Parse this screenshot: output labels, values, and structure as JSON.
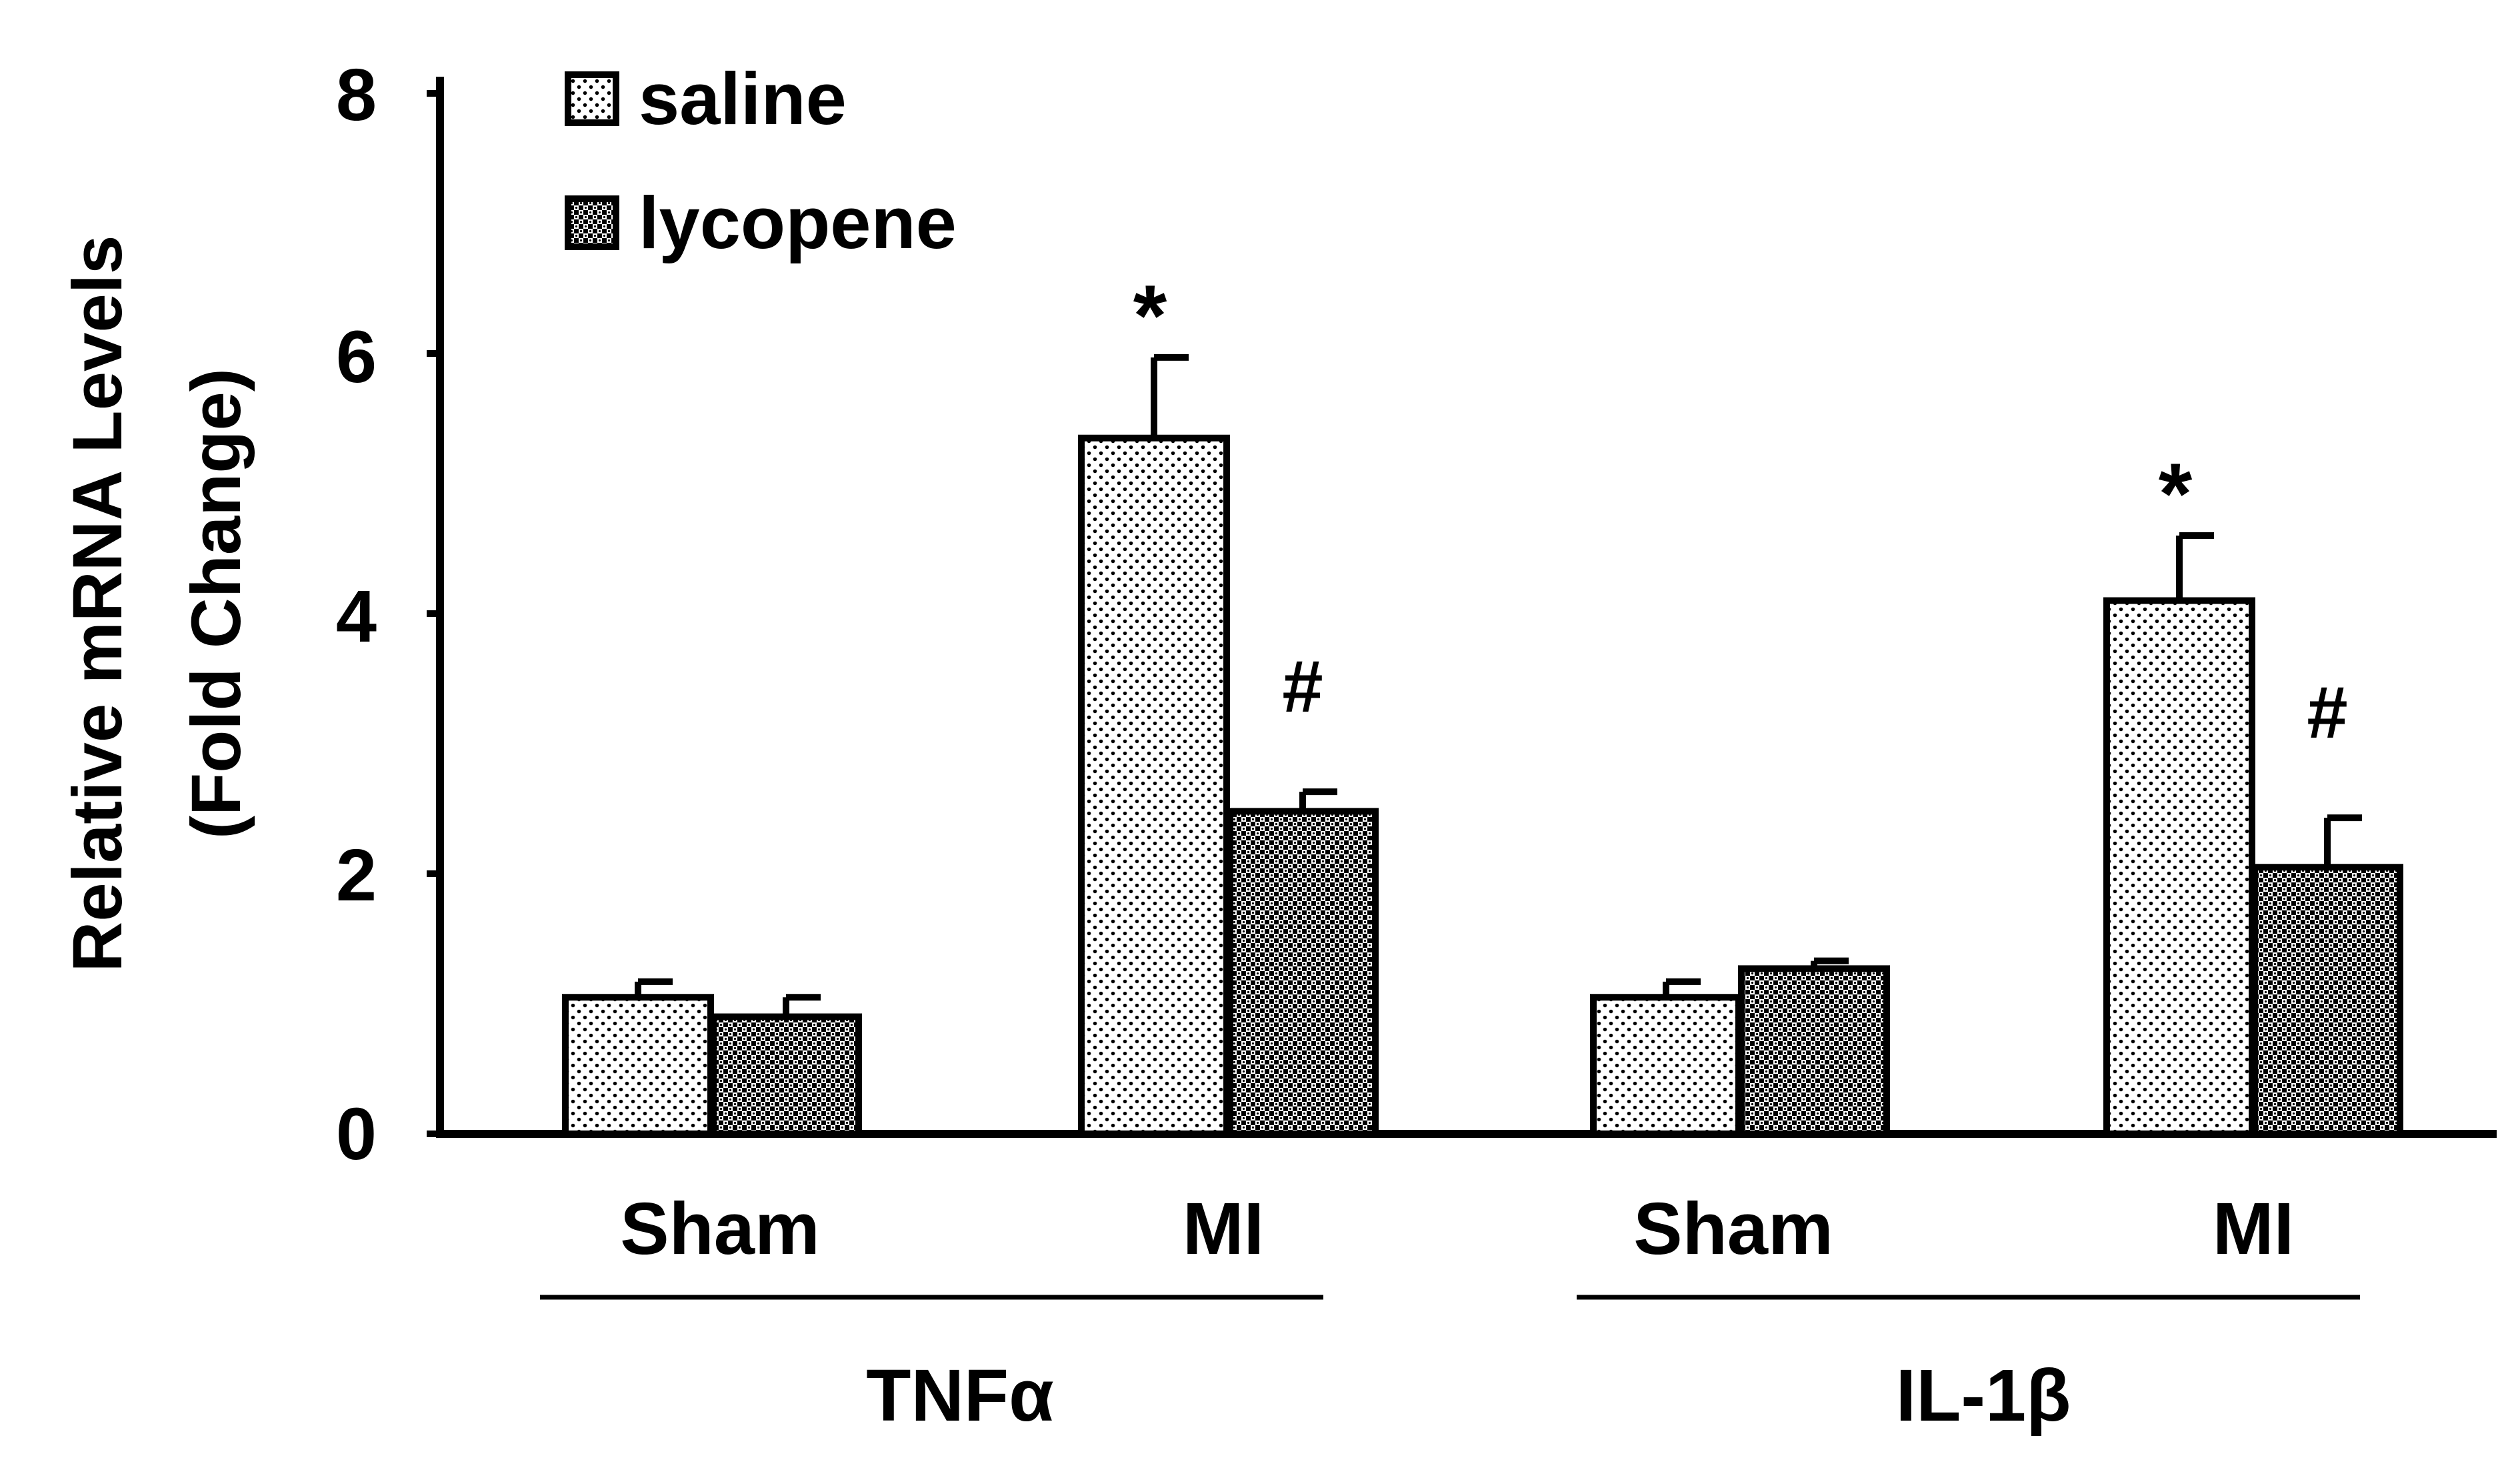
{
  "chart_data": {
    "type": "bar",
    "title": "",
    "ylabel_lines": [
      "Relative mRNA  Levels",
      "(Fold Change)"
    ],
    "ylim": [
      0,
      8
    ],
    "yticks": [
      0,
      2,
      4,
      6,
      8
    ],
    "grid": false,
    "legend_position": "top-left",
    "groups": [
      {
        "label": "TNFα",
        "categories": [
          "Sham",
          "MI"
        ]
      },
      {
        "label": "IL-1β",
        "categories": [
          "Sham",
          "MI"
        ]
      }
    ],
    "series": [
      {
        "name": "saline",
        "pattern": "dots",
        "values": [
          1.05,
          5.35,
          1.05,
          4.1
        ],
        "errors": [
          0.12,
          0.62,
          0.12,
          0.5
        ],
        "annotations": [
          "",
          "*",
          "",
          "*"
        ]
      },
      {
        "name": "lycopene",
        "pattern": "crosshatch",
        "values": [
          0.9,
          2.48,
          1.27,
          2.05
        ],
        "errors": [
          0.15,
          0.15,
          0.06,
          0.38
        ],
        "annotations": [
          "",
          "#",
          "",
          "#"
        ]
      }
    ]
  }
}
